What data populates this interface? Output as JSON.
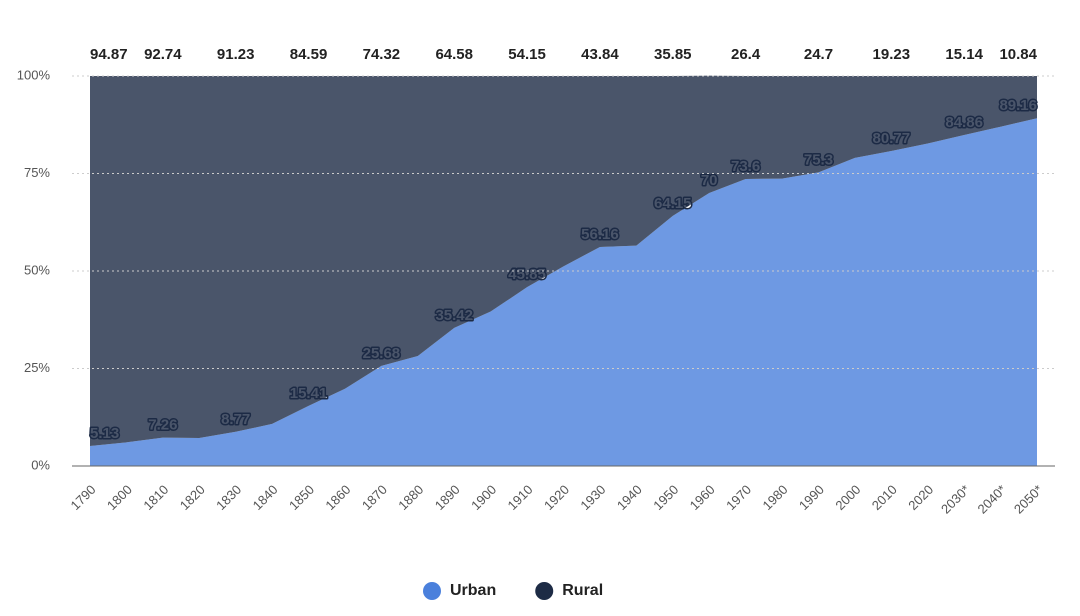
{
  "chart_data": {
    "type": "stacked_area",
    "categories": [
      "1790",
      "1800",
      "1810",
      "1820",
      "1830",
      "1840",
      "1850",
      "1860",
      "1870",
      "1880",
      "1890",
      "1900",
      "1910",
      "1920",
      "1930",
      "1940",
      "1950",
      "1960",
      "1970",
      "1980",
      "1990",
      "2000",
      "2010",
      "2020",
      "2030*",
      "2040*",
      "2050*"
    ],
    "series": [
      {
        "name": "Urban",
        "color": "#4a80dc",
        "values": [
          5.13,
          6.07,
          7.26,
          7.19,
          8.77,
          10.8,
          15.41,
          19.8,
          25.68,
          28.2,
          35.42,
          39.6,
          45.85,
          51.2,
          56.16,
          56.5,
          64.15,
          70,
          73.6,
          73.7,
          75.3,
          79.0,
          80.77,
          82.7,
          84.86,
          87.0,
          89.16
        ],
        "value_labels": [
          "5.13",
          null,
          "7.26",
          null,
          "8.77",
          null,
          "15.41",
          null,
          "25.68",
          null,
          "35.42",
          null,
          "45.85",
          null,
          "56.16",
          null,
          "64.15",
          "70",
          "73.6",
          null,
          "75.3",
          null,
          "80.77",
          null,
          "84.86",
          null,
          "89.16"
        ]
      },
      {
        "name": "Rural",
        "color": "#1d2b45",
        "values": [
          94.87,
          93.93,
          92.74,
          92.81,
          91.23,
          89.2,
          84.59,
          80.2,
          74.32,
          71.8,
          64.58,
          60.4,
          54.15,
          48.8,
          43.84,
          43.5,
          35.85,
          30.1,
          26.4,
          26.3,
          24.7,
          21.0,
          19.23,
          17.3,
          15.14,
          13.0,
          10.84
        ],
        "value_labels": [
          "94.87",
          null,
          "92.74",
          null,
          "91.23",
          null,
          "84.59",
          null,
          "74.32",
          null,
          "64.58",
          null,
          "54.15",
          null,
          "43.84",
          null,
          "35.85",
          null,
          "26.4",
          null,
          "24.7",
          null,
          "19.23",
          null,
          "15.14",
          null,
          "10.84"
        ]
      }
    ],
    "fill_opacity": 0.8,
    "ylim": [
      0,
      100
    ],
    "yticks": [
      {
        "value": 0,
        "label": "0%"
      },
      {
        "value": 25,
        "label": "25%"
      },
      {
        "value": 50,
        "label": "50%"
      },
      {
        "value": 75,
        "label": "75%"
      },
      {
        "value": 100,
        "label": "100%"
      }
    ],
    "grid": true
  }
}
